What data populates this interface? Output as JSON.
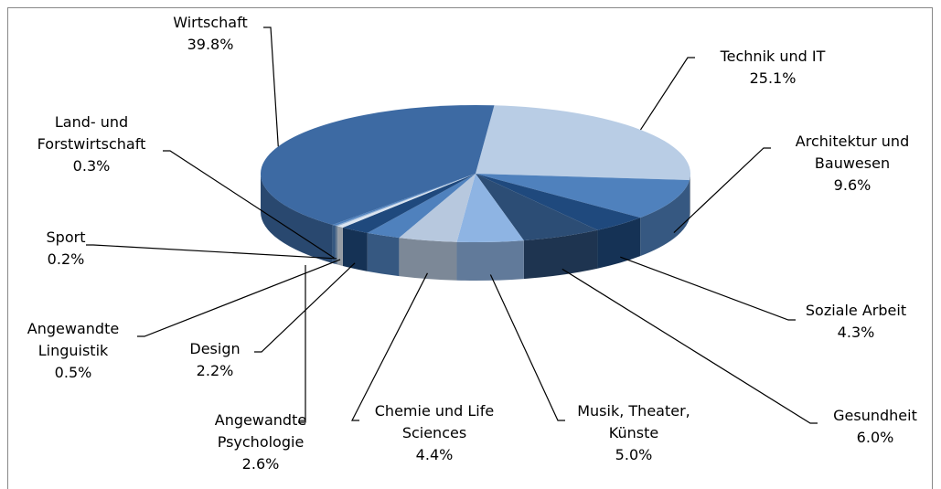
{
  "chart_data": {
    "type": "pie3d",
    "categories": [
      "Technik und IT",
      "Architektur und Bauwesen",
      "Soziale Arbeit",
      "Gesundheit",
      "Musik, Theater, Künste",
      "Chemie und Life Sciences",
      "Angewandte Psychologie",
      "Design",
      "Angewandte Linguistik",
      "Sport",
      "Land- und Forstwirtschaft",
      "Wirtschaft"
    ],
    "values": [
      25.1,
      9.6,
      4.3,
      6.0,
      5.0,
      4.4,
      2.6,
      2.2,
      0.5,
      0.2,
      0.3,
      39.8
    ],
    "value_labels": [
      "25.1%",
      "9.6%",
      "4.3%",
      "6.0%",
      "5.0%",
      "4.4%",
      "2.6%",
      "2.2%",
      "0.5%",
      "0.2%",
      "0.3%",
      "39.8%"
    ],
    "colors": [
      "#b9cde5",
      "#4f81bd",
      "#1f497d",
      "#2c4d75",
      "#8eb4e3",
      "#b7c8de",
      "#4f81bd",
      "#1f497d",
      "#dbe5f1",
      "#95b3d7",
      "#4f81bd",
      "#3d6aa3"
    ]
  }
}
